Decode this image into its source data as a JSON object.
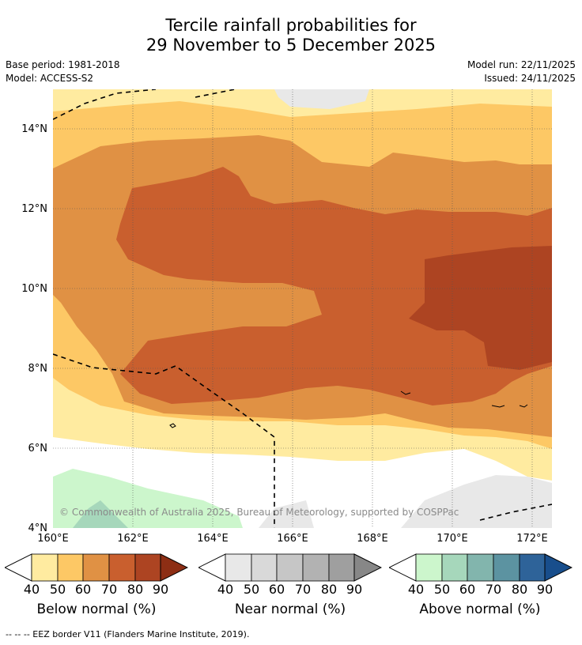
{
  "title_line1": "Tercile rainfall probabilities for",
  "title_line2": "29 November to 5 December 2025",
  "base_period": "Base period: 1981-2018",
  "model": "Model: ACCESS-S2",
  "model_run": "Model run: 22/11/2025",
  "issued": "Issued: 24/11/2025",
  "lat_ticks": [
    "14°N",
    "12°N",
    "10°N",
    "8°N",
    "6°N",
    "4°N"
  ],
  "lon_ticks": [
    "160°E",
    "162°E",
    "164°E",
    "166°E",
    "168°E",
    "170°E",
    "172°E"
  ],
  "copyright": "© Commonwealth of Australia 2025, Bureau of Meteorology, supported by COSPPac",
  "colorbars": [
    {
      "label": "Below normal (%)",
      "ticks": [
        "40",
        "50",
        "60",
        "70",
        "80",
        "90"
      ],
      "colors": [
        "#ffeba0",
        "#fdc865",
        "#e09144",
        "#c95f2e",
        "#ad4422",
        "#8d2e14"
      ]
    },
    {
      "label": "Near normal (%)",
      "ticks": [
        "40",
        "50",
        "60",
        "70",
        "80",
        "90"
      ],
      "colors": [
        "#e8e8e8",
        "#d9d9d9",
        "#c6c6c6",
        "#b2b2b2",
        "#9f9f9f",
        "#878787"
      ]
    },
    {
      "label": "Above normal (%)",
      "ticks": [
        "40",
        "50",
        "60",
        "70",
        "80",
        "90"
      ],
      "colors": [
        "#ccf6cc",
        "#a6d7bb",
        "#82b5ad",
        "#5c93a1",
        "#2e6399",
        "#184e8c"
      ]
    }
  ],
  "footnote": "--  --  -- EEZ border V11 (Flanders Marine Institute, 2019).",
  "map_colors": {
    "c40": "#ffeba0",
    "c50": "#fdc865",
    "c60": "#e09144",
    "c70": "#c95f2e",
    "c80": "#ad4422",
    "n40": "#e8e8e8",
    "n50": "#d9d9d9",
    "a40": "#ccf6cc",
    "a50": "#a6d7bb"
  }
}
